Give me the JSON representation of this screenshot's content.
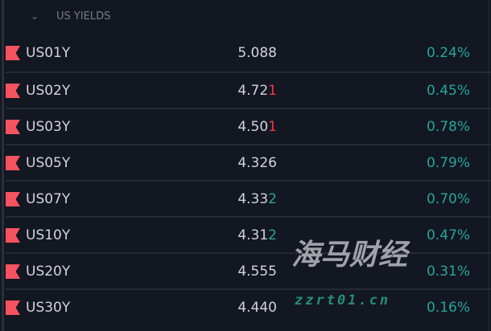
{
  "section": {
    "title": "US YIELDS",
    "collapse_icon": "chevron-down-icon"
  },
  "colors": {
    "up": "#26a69a",
    "down": "#f23645",
    "flag": "#f7525f",
    "background": "#131722"
  },
  "rows": [
    {
      "symbol": "US01Y",
      "last_main": "5.08",
      "last_tail": "8",
      "tail_dir": "",
      "change": "0.24%"
    },
    {
      "symbol": "US02Y",
      "last_main": "4.72",
      "last_tail": "1",
      "tail_dir": "down",
      "change": "0.45%"
    },
    {
      "symbol": "US03Y",
      "last_main": "4.50",
      "last_tail": "1",
      "tail_dir": "down",
      "change": "0.78%"
    },
    {
      "symbol": "US05Y",
      "last_main": "4.32",
      "last_tail": "6",
      "tail_dir": "",
      "change": "0.79%"
    },
    {
      "symbol": "US07Y",
      "last_main": "4.33",
      "last_tail": "2",
      "tail_dir": "up",
      "change": "0.70%"
    },
    {
      "symbol": "US10Y",
      "last_main": "4.31",
      "last_tail": "2",
      "tail_dir": "up",
      "change": "0.47%"
    },
    {
      "symbol": "US20Y",
      "last_main": "4.55",
      "last_tail": "5",
      "tail_dir": "",
      "change": "0.31%"
    },
    {
      "symbol": "US30Y",
      "last_main": "4.44",
      "last_tail": "0",
      "tail_dir": "",
      "change": "0.16%"
    }
  ],
  "watermark": {
    "text": "海马财经",
    "url": "zzrt01.cn"
  }
}
